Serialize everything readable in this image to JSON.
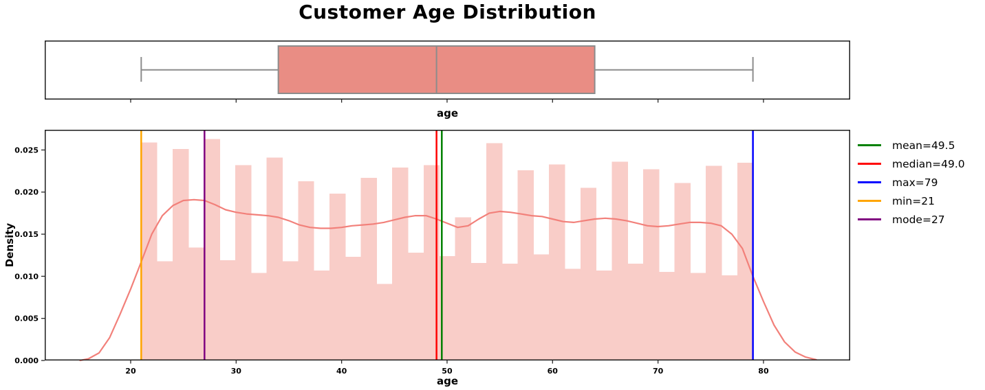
{
  "title": "Customer Age Distribution",
  "colors": {
    "bar_fill": "#f9cdc8",
    "kde_line": "#f2807a",
    "box_face": "#e98d84",
    "box_edge": "#8c8c8c",
    "spine": "#1a1a1a",
    "tick": "#262626",
    "mean": "#008000",
    "median": "#ff0000",
    "max": "#0000ff",
    "min": "#ffa500",
    "mode": "#800080"
  },
  "chart_data": [
    {
      "type": "box",
      "xlabel": "age",
      "orientation": "horizontal",
      "stats": {
        "min": 21,
        "q1": 34,
        "median": 49,
        "q3": 64,
        "max": 79
      },
      "xlim": [
        11.85,
        88.22
      ],
      "xticks": [
        "20",
        "30",
        "40",
        "50",
        "60",
        "70",
        "80"
      ],
      "grid": false
    },
    {
      "type": "histogram",
      "xlabel": "age",
      "ylabel": "Density",
      "xlim": [
        11.85,
        88.22
      ],
      "ylim": [
        0,
        0.0274
      ],
      "xticks": [
        "20",
        "30",
        "40",
        "50",
        "60",
        "70",
        "80"
      ],
      "yticks": [
        "0.000",
        "0.005",
        "0.010",
        "0.015",
        "0.020",
        "0.025"
      ],
      "bin_start": 21,
      "bin_width": 1.48718,
      "bar_heights": [
        0.0259,
        0.0118,
        0.0251,
        0.0134,
        0.0263,
        0.0119,
        0.0232,
        0.0104,
        0.0241,
        0.0118,
        0.0213,
        0.0107,
        0.0198,
        0.0123,
        0.0217,
        0.0091,
        0.0229,
        0.0128,
        0.0232,
        0.0124,
        0.017,
        0.0116,
        0.0258,
        0.0115,
        0.0226,
        0.0126,
        0.0233,
        0.0109,
        0.0205,
        0.0107,
        0.0236,
        0.0115,
        0.0227,
        0.0105,
        0.0211,
        0.0104,
        0.0231,
        0.0101,
        0.0235
      ],
      "kde": {
        "x": [
          15.2,
          16,
          17,
          18,
          19,
          20,
          21,
          22,
          23,
          24,
          25,
          26,
          27,
          28,
          29,
          30,
          31,
          32,
          33,
          34,
          35,
          36,
          37,
          38,
          39,
          40,
          41,
          42,
          43,
          44,
          45,
          46,
          47,
          48,
          49,
          50,
          51,
          52,
          53,
          54,
          55,
          56,
          57,
          58,
          59,
          60,
          61,
          62,
          63,
          64,
          65,
          66,
          67,
          68,
          69,
          70,
          71,
          72,
          73,
          74,
          75,
          76,
          77,
          78,
          79,
          80,
          81,
          82,
          83,
          84,
          85
        ],
        "y": [
          0.0,
          0.0002,
          0.0009,
          0.0027,
          0.0055,
          0.0085,
          0.0117,
          0.015,
          0.0172,
          0.0184,
          0.019,
          0.0191,
          0.019,
          0.0185,
          0.0179,
          0.0176,
          0.0174,
          0.0173,
          0.0172,
          0.017,
          0.0166,
          0.0161,
          0.0158,
          0.0157,
          0.0157,
          0.0158,
          0.016,
          0.0161,
          0.0162,
          0.0164,
          0.0167,
          0.017,
          0.0172,
          0.0172,
          0.0168,
          0.0163,
          0.0158,
          0.016,
          0.0168,
          0.0175,
          0.0177,
          0.0176,
          0.0174,
          0.0172,
          0.0171,
          0.0168,
          0.0165,
          0.0164,
          0.0166,
          0.0168,
          0.0169,
          0.0168,
          0.0166,
          0.0163,
          0.016,
          0.0159,
          0.016,
          0.0162,
          0.0164,
          0.0164,
          0.0163,
          0.016,
          0.015,
          0.0133,
          0.01,
          0.007,
          0.0042,
          0.0022,
          0.001,
          0.0004,
          0.0001
        ]
      },
      "vlines": [
        {
          "name": "mean",
          "x": 49.5,
          "label": "mean=49.5",
          "color": "#008000"
        },
        {
          "name": "median",
          "x": 49.0,
          "label": "median=49.0",
          "color": "#ff0000"
        },
        {
          "name": "max",
          "x": 79,
          "label": "max=79",
          "color": "#0000ff"
        },
        {
          "name": "min",
          "x": 21,
          "label": "min=21",
          "color": "#ffa500"
        },
        {
          "name": "mode",
          "x": 27,
          "label": "mode=27",
          "color": "#800080"
        }
      ],
      "legend_position": "right",
      "grid": false
    }
  ]
}
